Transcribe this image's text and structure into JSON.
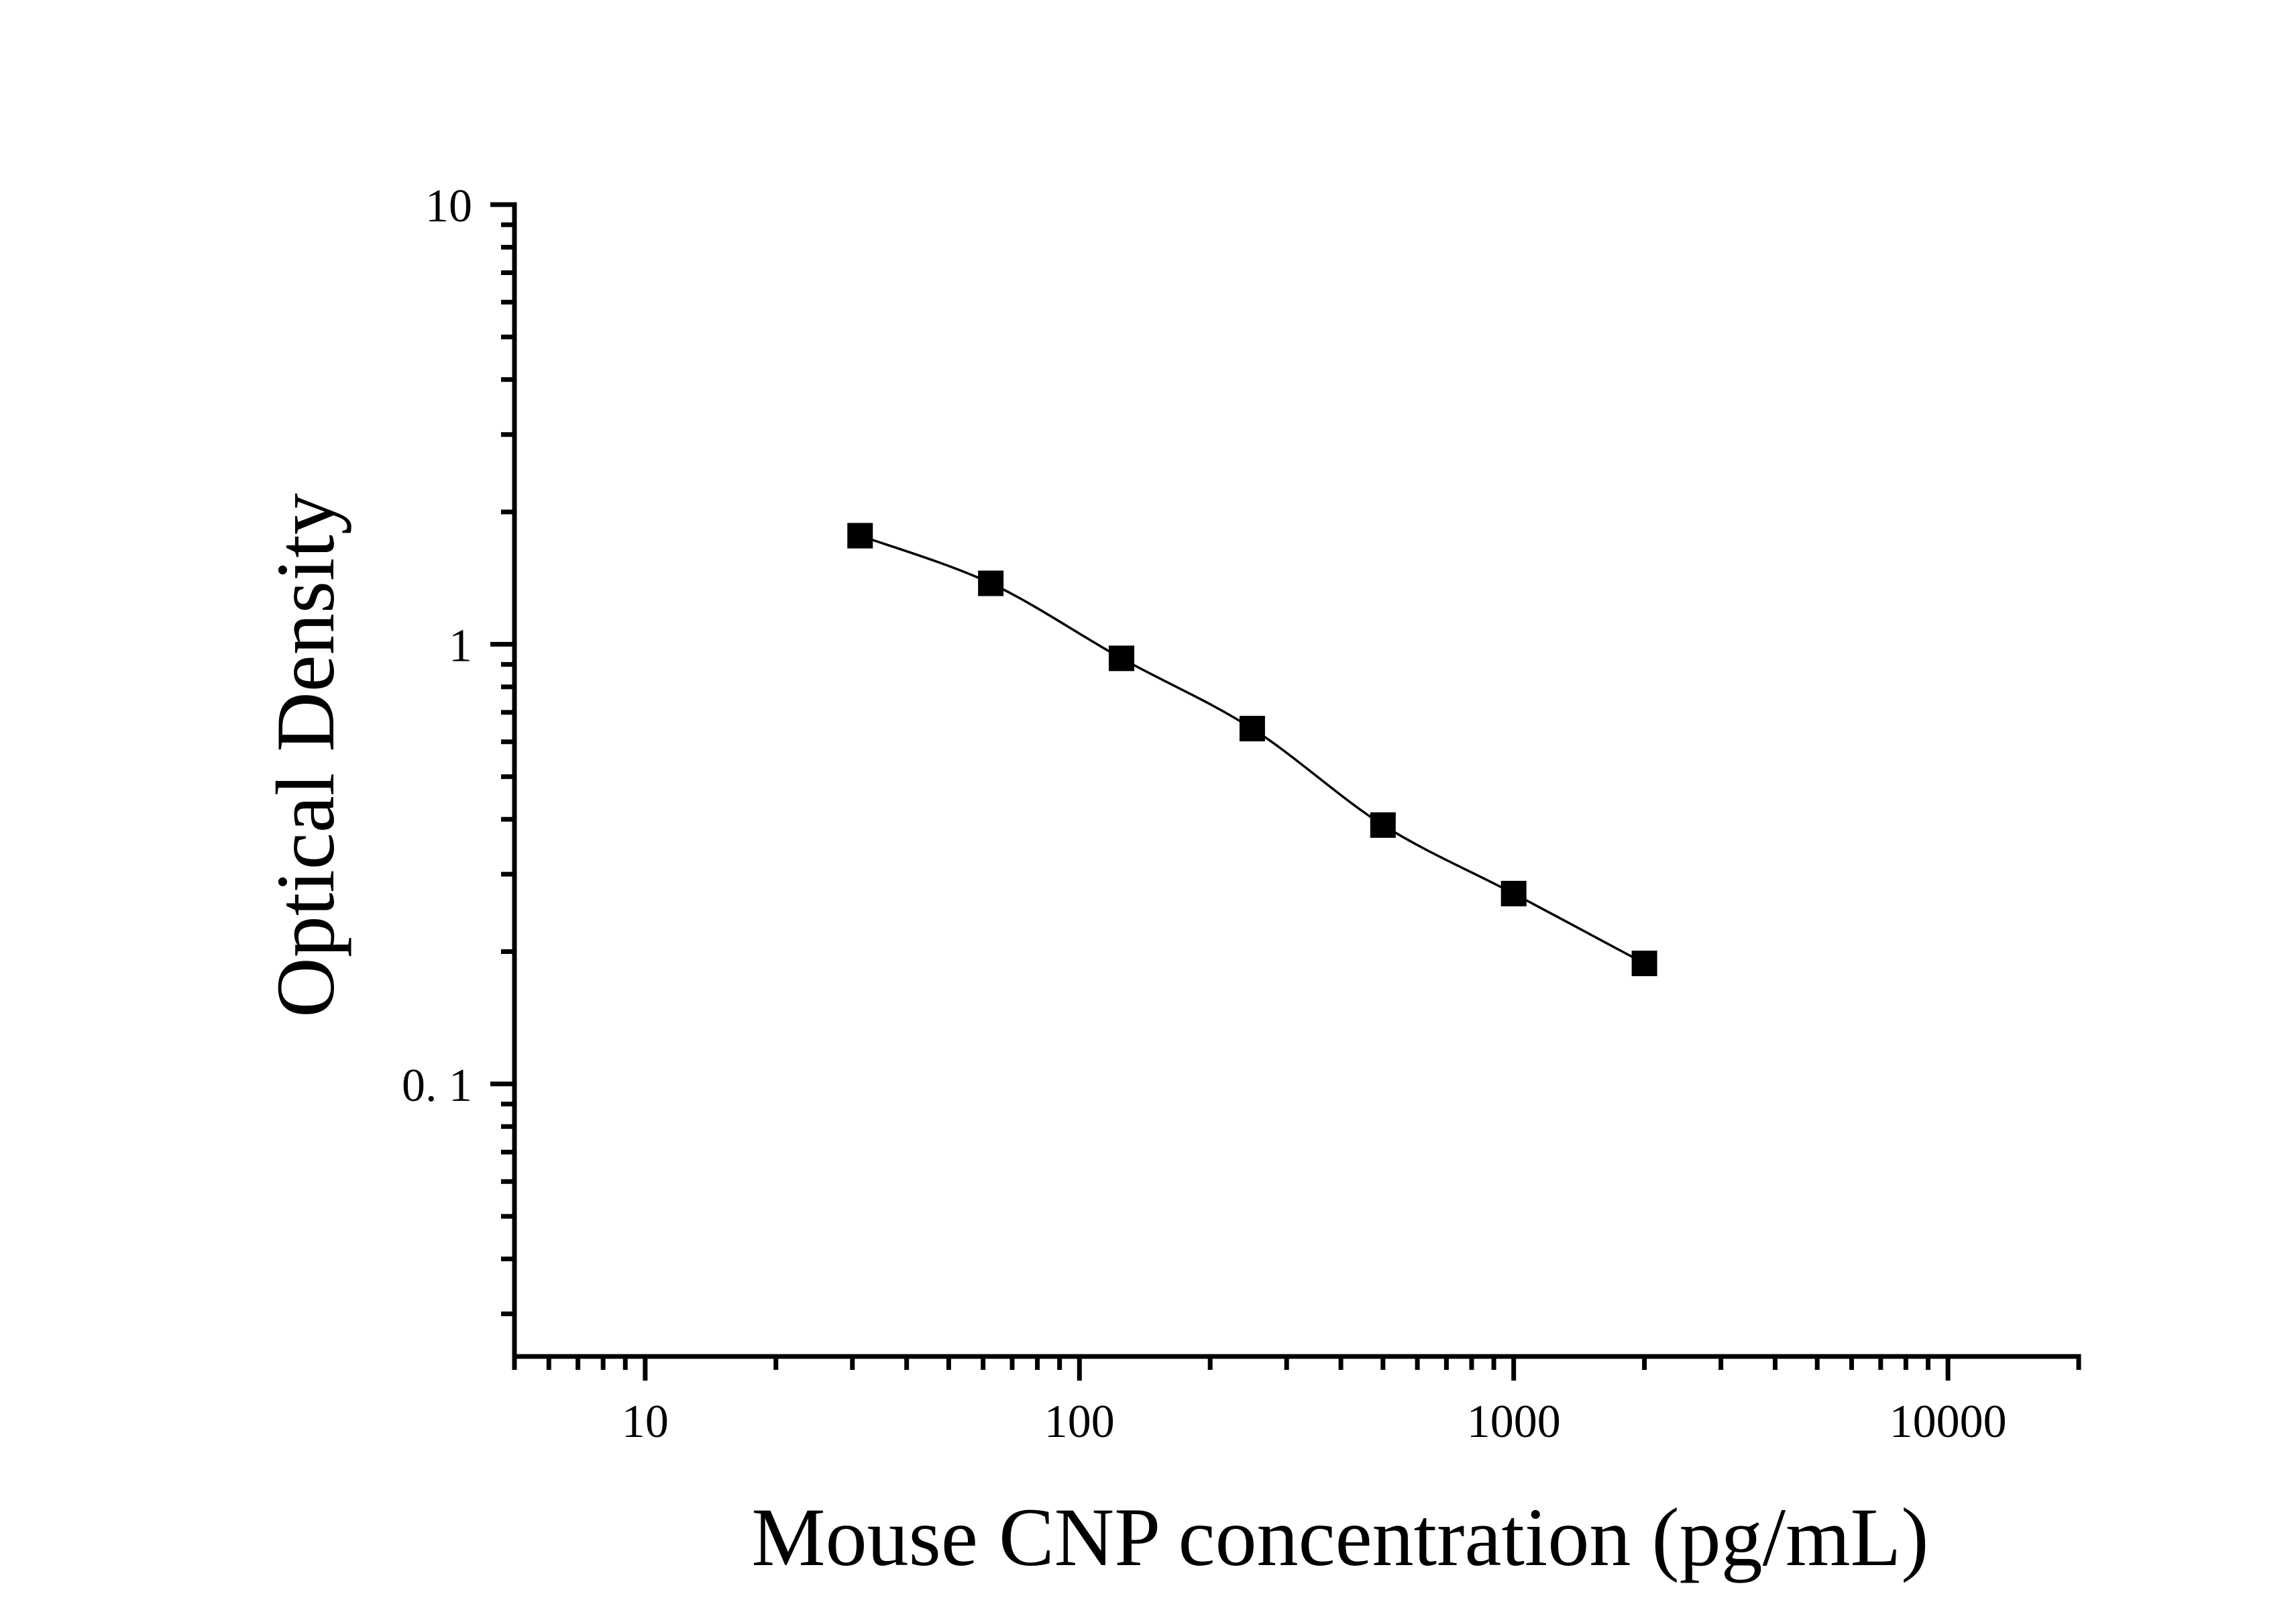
{
  "chart_data": {
    "type": "scatter",
    "title": "",
    "xlabel": "Mouse CNP concentration (pg/mL)",
    "ylabel": "Optical Density",
    "xscale": "log",
    "yscale": "log",
    "xlim": [
      5,
      20000
    ],
    "ylim": [
      0.024,
      10
    ],
    "grid": false,
    "legend": "none",
    "x_ticks": [
      {
        "value": 10,
        "label": "10"
      },
      {
        "value": 100,
        "label": "100"
      },
      {
        "value": 1000,
        "label": "1000"
      },
      {
        "value": 10000,
        "label": "10000"
      }
    ],
    "y_ticks": [
      {
        "value": 0.1,
        "label": "0. 1"
      },
      {
        "value": 1,
        "label": "1"
      },
      {
        "value": 10,
        "label": "10"
      }
    ],
    "series": [
      {
        "name": "Standard curve",
        "marker": "square",
        "line": "smooth fit",
        "color": "#000000",
        "x": [
          31.25,
          62.5,
          125,
          250,
          500,
          1000,
          2000
        ],
        "y": [
          1.766,
          1.376,
          0.929,
          0.643,
          0.388,
          0.271,
          0.188
        ]
      }
    ]
  }
}
